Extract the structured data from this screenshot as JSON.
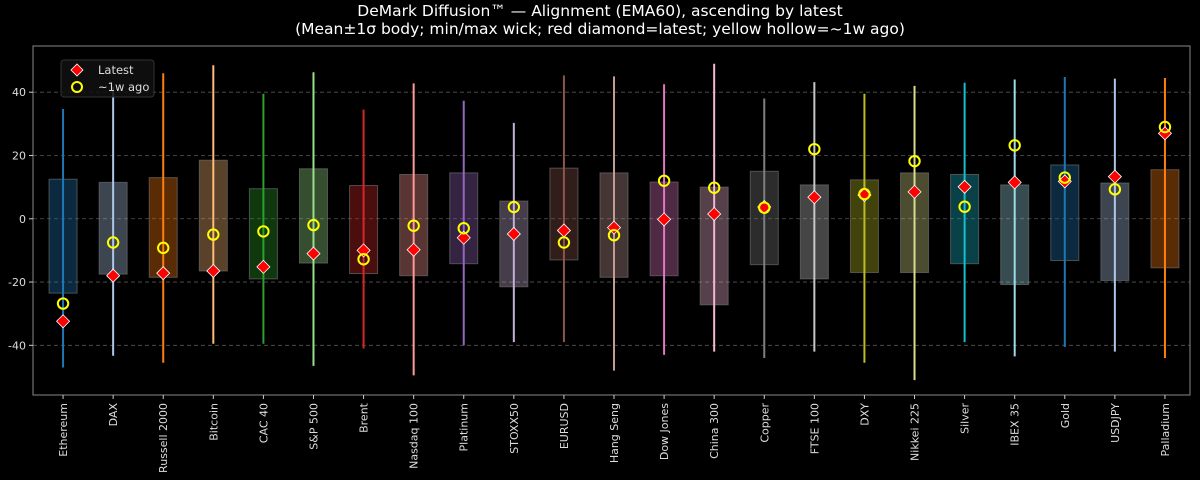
{
  "chart_data": {
    "type": "box-range",
    "title_line1": "DeMark Diffusion™ — Alignment (EMA60), ascending by latest",
    "title_line2": "(Mean±1σ body; min/max wick; red diamond=latest; yellow hollow=~1w ago)",
    "xlabel": "",
    "ylabel": "",
    "ylim": [
      -55.7,
      54.6
    ],
    "yticks": [
      -40,
      -20,
      0,
      20,
      40
    ],
    "grid": "horizontal dashed",
    "legend": {
      "placement": "top-left",
      "entries": [
        "Latest",
        "~1w ago"
      ]
    },
    "colors": {
      "latest": "#ff0000",
      "week_ago": "#ffff00",
      "background": "#000000"
    },
    "categories": [
      "Ethereum",
      "DAX",
      "Russell 2000",
      "Bitcoin",
      "CAC 40",
      "S&P 500",
      "Brent",
      "Nasdaq 100",
      "Platinum",
      "STOXX50",
      "EURUSD",
      "Hang Seng",
      "Dow Jones",
      "China 300",
      "Copper",
      "FTSE 100",
      "DXY",
      "Nikkei 225",
      "Silver",
      "IBEX 35",
      "Gold",
      "USDJPY",
      "Palladium"
    ],
    "series_colors": [
      "#1f77b4",
      "#aec7e8",
      "#ff7f0e",
      "#ffbb78",
      "#2ca02c",
      "#98df8a",
      "#d62728",
      "#ff9896",
      "#9467bd",
      "#c5b0d5",
      "#8c564b",
      "#c49c94",
      "#e377c2",
      "#f7b6d2",
      "#7f7f7f",
      "#c7c7c7",
      "#bcbd22",
      "#dbdb8d",
      "#17becf",
      "#9edae5",
      "#1f77b4",
      "#aec7e8",
      "#ff7f0e"
    ],
    "mean_plus_sigma": [
      12.5,
      11.5,
      13,
      18.5,
      9.5,
      15.8,
      10.5,
      14,
      14.5,
      5.6,
      16,
      14.5,
      11.6,
      10,
      15,
      10.7,
      12.3,
      14.5,
      14,
      10.7,
      17,
      11.3,
      15.5
    ],
    "mean_minus_sigma": [
      -23.5,
      -17.5,
      -18.5,
      -16.5,
      -19,
      -14,
      -17.3,
      -18,
      -14.2,
      -21.5,
      -13,
      -18.5,
      -18,
      -27.2,
      -14.5,
      -19,
      -17,
      -17,
      -14.2,
      -20.8,
      -13.2,
      -19.5,
      -15.5
    ],
    "max": [
      34.7,
      41.7,
      46,
      48.5,
      39.5,
      46.3,
      34.5,
      42.8,
      37.3,
      30.3,
      45.3,
      45,
      42.5,
      49,
      38,
      43.2,
      39.5,
      42,
      43,
      44,
      44.8,
      44.3,
      44.5
    ],
    "min": [
      -47,
      -43.3,
      -45.5,
      -39.5,
      -39.5,
      -46.5,
      -41,
      -49.5,
      -40,
      -39,
      -39,
      -48,
      -43,
      -42,
      -44,
      -42,
      -45.5,
      -51,
      -39,
      -43.5,
      -40.5,
      -42,
      -44
    ],
    "latest": [
      -32.4,
      -18,
      -17.2,
      -16.5,
      -15.2,
      -11,
      -10,
      -9.8,
      -6,
      -4.8,
      -3.7,
      -2.8,
      -0.2,
      1.5,
      3.7,
      6.8,
      7.5,
      8.5,
      10.1,
      11.5,
      11.8,
      13.3,
      27
    ],
    "week_ago": [
      -26.8,
      -7.5,
      -9.2,
      -5,
      -4,
      -2,
      -12.8,
      -2.2,
      -3,
      3.7,
      -7.5,
      -5.2,
      12,
      9.8,
      3.5,
      22,
      7.8,
      18.2,
      3.8,
      23.2,
      13,
      9.3,
      29
    ]
  }
}
